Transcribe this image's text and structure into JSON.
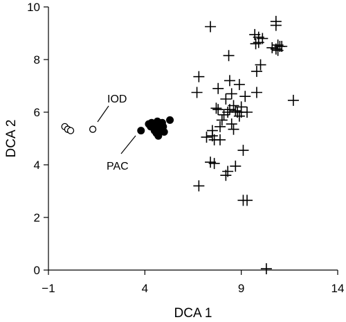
{
  "chart_data": {
    "type": "scatter",
    "xlabel": "DCA 1",
    "ylabel": "DCA 2",
    "xlim": [
      -1,
      14
    ],
    "ylim": [
      0,
      10
    ],
    "xticks": [
      "−1",
      "4",
      "9",
      "14"
    ],
    "yticks": [
      "0",
      "2",
      "4",
      "6",
      "8",
      "10"
    ],
    "grid": false,
    "annotations": [
      {
        "text": "IOD",
        "target": "open"
      },
      {
        "text": "PAC",
        "target": "filled"
      }
    ],
    "series": [
      {
        "marker": "open-circle",
        "points": [
          [
            -0.15,
            5.45
          ],
          [
            0.0,
            5.35
          ],
          [
            0.15,
            5.3
          ],
          [
            1.3,
            5.35
          ]
        ]
      },
      {
        "marker": "filled-circle",
        "points": [
          [
            3.8,
            5.3
          ],
          [
            4.2,
            5.55
          ],
          [
            4.3,
            5.45
          ],
          [
            4.35,
            5.6
          ],
          [
            4.45,
            5.4
          ],
          [
            4.5,
            5.3
          ],
          [
            4.55,
            5.55
          ],
          [
            4.6,
            5.2
          ],
          [
            4.6,
            5.45
          ],
          [
            4.65,
            5.65
          ],
          [
            4.7,
            5.1
          ],
          [
            4.75,
            5.35
          ],
          [
            4.8,
            5.5
          ],
          [
            4.85,
            5.3
          ],
          [
            4.9,
            5.6
          ],
          [
            4.95,
            5.45
          ],
          [
            5.0,
            5.25
          ],
          [
            5.3,
            5.7
          ]
        ]
      },
      {
        "marker": "plus",
        "points": [
          [
            6.8,
            3.2
          ],
          [
            6.7,
            6.75
          ],
          [
            6.8,
            7.35
          ],
          [
            7.2,
            5.05
          ],
          [
            7.4,
            9.25
          ],
          [
            7.4,
            4.1
          ],
          [
            7.5,
            5.3
          ],
          [
            7.5,
            5.1
          ],
          [
            7.6,
            4.05
          ],
          [
            7.6,
            4.95
          ],
          [
            7.7,
            6.15
          ],
          [
            7.8,
            6.9
          ],
          [
            7.8,
            6.1
          ],
          [
            7.9,
            5.45
          ],
          [
            7.9,
            4.95
          ],
          [
            8.0,
            5.7
          ],
          [
            8.1,
            5.9
          ],
          [
            8.2,
            3.6
          ],
          [
            8.2,
            6.5
          ],
          [
            8.3,
            3.75
          ],
          [
            8.3,
            6.0
          ],
          [
            8.35,
            8.15
          ],
          [
            8.4,
            7.2
          ],
          [
            8.4,
            6.1
          ],
          [
            8.5,
            6.7
          ],
          [
            8.5,
            5.55
          ],
          [
            8.6,
            6.25
          ],
          [
            8.6,
            5.35
          ],
          [
            8.7,
            3.95
          ],
          [
            8.7,
            6.05
          ],
          [
            8.8,
            6.0
          ],
          [
            8.9,
            7.05
          ],
          [
            8.9,
            5.85
          ],
          [
            9.0,
            6.2
          ],
          [
            9.0,
            6.0
          ],
          [
            9.1,
            4.55
          ],
          [
            9.1,
            2.65
          ],
          [
            9.2,
            6.6
          ],
          [
            9.3,
            2.65
          ],
          [
            9.3,
            6.0
          ],
          [
            9.7,
            8.95
          ],
          [
            9.75,
            8.6
          ],
          [
            9.8,
            7.55
          ],
          [
            9.8,
            6.75
          ],
          [
            9.9,
            8.65
          ],
          [
            9.9,
            8.85
          ],
          [
            10.0,
            7.8
          ],
          [
            10.1,
            8.8
          ],
          [
            10.3,
            0.05
          ],
          [
            10.6,
            8.45
          ],
          [
            10.8,
            9.45
          ],
          [
            10.8,
            9.3
          ],
          [
            10.8,
            8.4
          ],
          [
            10.9,
            8.55
          ],
          [
            10.9,
            8.35
          ],
          [
            11.0,
            8.5
          ],
          [
            11.1,
            8.5
          ],
          [
            11.7,
            6.45
          ]
        ]
      }
    ]
  }
}
